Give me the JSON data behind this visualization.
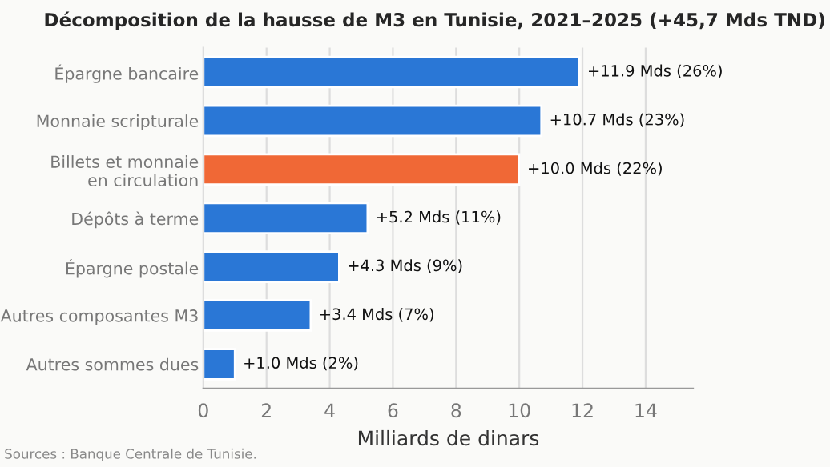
{
  "chart_data": {
    "type": "bar",
    "orientation": "horizontal",
    "title": "Décomposition de la hausse de M3 en Tunisie, 2021–2025 (+45,7 Mds TND)",
    "categories": [
      "Épargne bancaire",
      "Monnaie scripturale",
      "Billets et monnaie\nen circulation",
      "Dépôts à terme",
      "Épargne postale",
      "Autres composantes M3",
      "Autres sommes dues"
    ],
    "values": [
      11.9,
      10.7,
      10.0,
      5.2,
      4.3,
      3.4,
      1.0
    ],
    "colors": [
      "#2a77d6",
      "#2a77d6",
      "#f06836",
      "#2a77d6",
      "#2a77d6",
      "#2a77d6",
      "#2a77d6"
    ],
    "value_labels": [
      "+11.9 Mds (26%)",
      "+10.7 Mds (23%)",
      "+10.0 Mds (22%)",
      "+5.2 Mds (11%)",
      "+4.3 Mds (9%)",
      "+3.4 Mds (7%)",
      "+1.0 Mds (2%)"
    ],
    "xlabel": "Milliards de dinars",
    "xlim": [
      0,
      15.5
    ],
    "xticks": [
      0,
      2,
      4,
      6,
      8,
      10,
      12,
      14
    ],
    "grid": "x",
    "legend": false,
    "annotations": [
      "Sources : Banque Centrale de Tunisie."
    ]
  }
}
